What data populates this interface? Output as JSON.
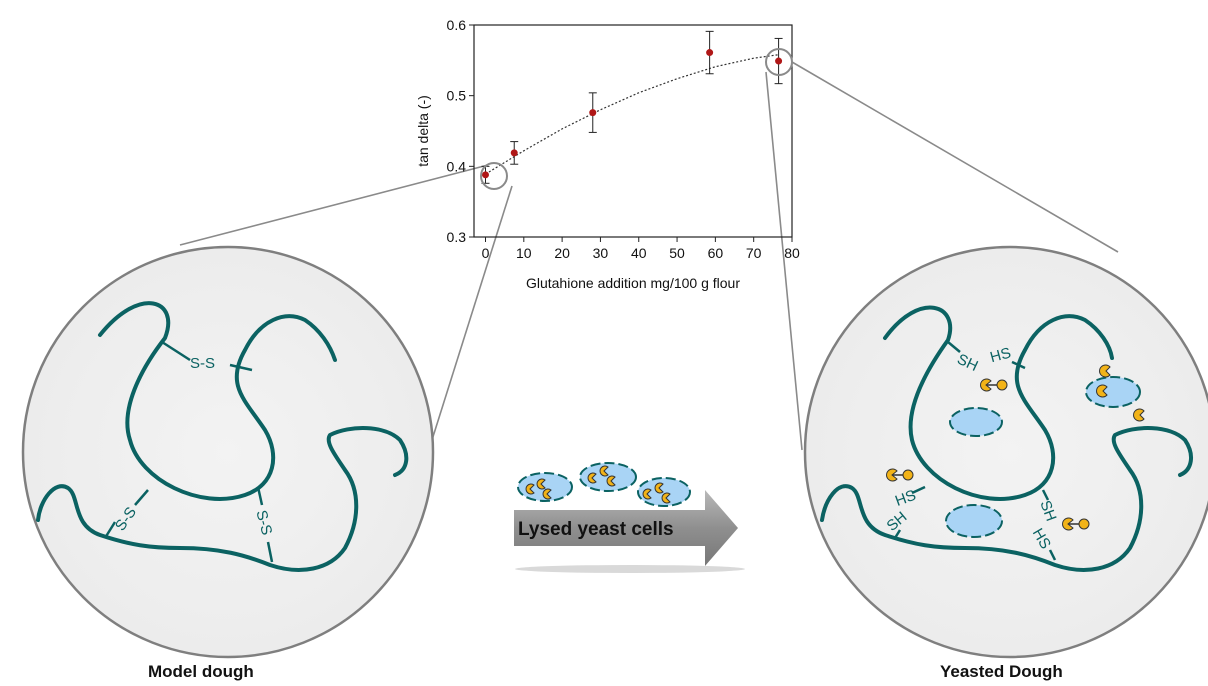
{
  "chart_data": {
    "type": "scatter",
    "xlabel": "Glutahione addition mg/100 g flour",
    "ylabel": "tan delta (-)",
    "xlim": [
      -3,
      80
    ],
    "ylim": [
      0.3,
      0.6
    ],
    "x_ticks": [
      0,
      10,
      20,
      30,
      40,
      50,
      60,
      70,
      80
    ],
    "y_ticks": [
      0.3,
      0.4,
      0.5,
      0.6
    ],
    "x_tick_labels": [
      "0",
      "10",
      "20",
      "30",
      "40",
      "50",
      "60",
      "70",
      "80"
    ],
    "y_tick_labels": [
      "0.3",
      "0.4",
      "0.5",
      "0.6"
    ],
    "points": [
      {
        "x": 0,
        "y": 0.388,
        "err": 0.012
      },
      {
        "x": 7.5,
        "y": 0.419,
        "err": 0.016
      },
      {
        "x": 28,
        "y": 0.476,
        "err": 0.028
      },
      {
        "x": 58.5,
        "y": 0.561,
        "err": 0.03
      },
      {
        "x": 76.5,
        "y": 0.549,
        "err": 0.032
      }
    ],
    "trend": {
      "type": "dotted-curve",
      "x": [
        0,
        10,
        20,
        30,
        40,
        50,
        60,
        70,
        76.5
      ],
      "y": [
        0.389,
        0.422,
        0.453,
        0.48,
        0.504,
        0.524,
        0.541,
        0.553,
        0.558
      ]
    },
    "point_color": "#b01717"
  },
  "arrow": {
    "label": "Lysed  yeast cells"
  },
  "left_panel": {
    "caption": "Model dough",
    "bond_label": "S-S"
  },
  "right_panel": {
    "caption": "Yeasted Dough",
    "sh_label": "SH",
    "hs_label": "HS"
  },
  "colors": {
    "chain": "#0b6262",
    "yeast_cell": "#a9d4f5",
    "glutathione": "#f2b318"
  }
}
